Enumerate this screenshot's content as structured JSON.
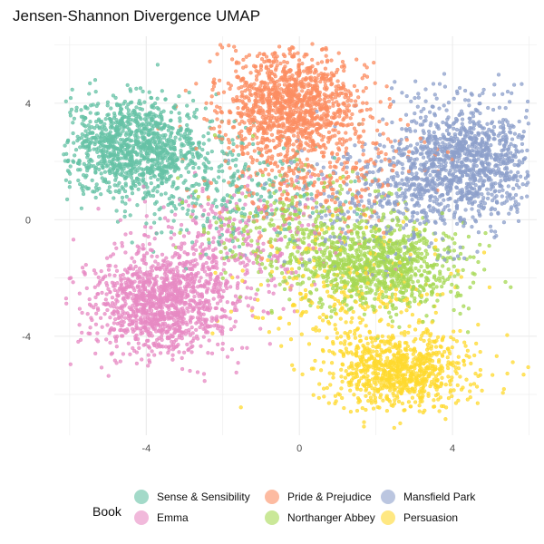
{
  "chart_data": {
    "type": "scatter",
    "title": "Jensen-Shannon Divergence UMAP",
    "xlabel": "",
    "ylabel": "",
    "xlim": [
      -6.4,
      6.2
    ],
    "ylim": [
      -7.4,
      6.3
    ],
    "x_ticks": [
      -4,
      0,
      4
    ],
    "y_ticks": [
      -4,
      0,
      4
    ],
    "grid": true,
    "legend_position": "bottom",
    "legend_title": "Book",
    "series": [
      {
        "name": "Sense & Sensibility",
        "color": "#66c2a5",
        "points": 1400,
        "clusters": [
          {
            "x": -4.3,
            "y": 2.5,
            "sx": 0.9,
            "sy": 0.85,
            "w": 0.8
          },
          {
            "x": -2.0,
            "y": 1.0,
            "sx": 1.3,
            "sy": 1.0,
            "w": 0.2
          }
        ]
      },
      {
        "name": "Pride & Prejudice",
        "color": "#fc8d62",
        "points": 1500,
        "clusters": [
          {
            "x": -0.2,
            "y": 4.0,
            "sx": 0.9,
            "sy": 0.9,
            "w": 0.75
          },
          {
            "x": 0.3,
            "y": 1.8,
            "sx": 1.4,
            "sy": 1.1,
            "w": 0.25
          }
        ]
      },
      {
        "name": "Mansfield Park",
        "color": "#8da0cb",
        "points": 1500,
        "clusters": [
          {
            "x": 4.3,
            "y": 2.0,
            "sx": 1.0,
            "sy": 1.0,
            "w": 0.8
          },
          {
            "x": 2.0,
            "y": 0.5,
            "sx": 1.3,
            "sy": 1.1,
            "w": 0.2
          }
        ]
      },
      {
        "name": "Emma",
        "color": "#e78ac3",
        "points": 1500,
        "clusters": [
          {
            "x": -3.6,
            "y": -2.9,
            "sx": 0.95,
            "sy": 0.9,
            "w": 0.8
          },
          {
            "x": -1.6,
            "y": -0.8,
            "sx": 1.2,
            "sy": 1.0,
            "w": 0.2
          }
        ]
      },
      {
        "name": "Northanger Abbey",
        "color": "#a6d854",
        "points": 1200,
        "clusters": [
          {
            "x": 2.1,
            "y": -1.6,
            "sx": 1.1,
            "sy": 0.75,
            "w": 0.75
          },
          {
            "x": 0.0,
            "y": -0.5,
            "sx": 1.3,
            "sy": 1.0,
            "w": 0.25
          }
        ]
      },
      {
        "name": "Persuasion",
        "color": "#ffd92f",
        "points": 1100,
        "clusters": [
          {
            "x": 2.6,
            "y": -5.2,
            "sx": 0.9,
            "sy": 0.65,
            "w": 0.75
          },
          {
            "x": 1.2,
            "y": -2.5,
            "sx": 1.4,
            "sy": 1.2,
            "w": 0.25
          }
        ]
      }
    ]
  }
}
